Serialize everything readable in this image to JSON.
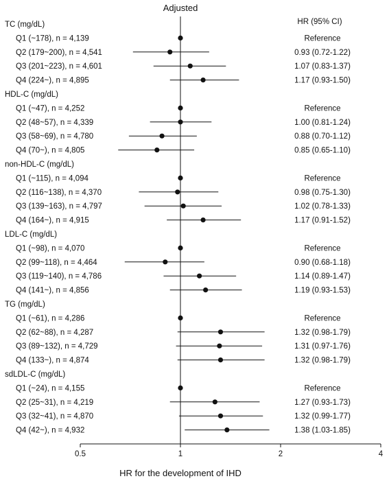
{
  "chart_data": {
    "type": "forest",
    "title": "Adjusted",
    "xlabel": "HR for the development of IHD",
    "hr_header": "HR (95% CI)",
    "x_scale": "log2",
    "xlim": [
      0.5,
      4
    ],
    "xticks": [
      {
        "value": 0.5,
        "label": "0.5"
      },
      {
        "value": 1,
        "label": "1"
      },
      {
        "value": 2,
        "label": "2"
      },
      {
        "value": 4,
        "label": "4"
      }
    ],
    "reference_line": 1,
    "groups": [
      {
        "name": "TC (mg/dL)",
        "rows": [
          {
            "label": "Q1 (~178), n = 4,139",
            "hr": 1.0,
            "lo": null,
            "hi": null,
            "text": "Reference"
          },
          {
            "label": "Q2 (179~200), n = 4,541",
            "hr": 0.93,
            "lo": 0.72,
            "hi": 1.22,
            "text": "0.93 (0.72-1.22)"
          },
          {
            "label": "Q3 (201~223), n = 4,601",
            "hr": 1.07,
            "lo": 0.83,
            "hi": 1.37,
            "text": "1.07 (0.83-1.37)"
          },
          {
            "label": "Q4 (224~), n = 4,895",
            "hr": 1.17,
            "lo": 0.93,
            "hi": 1.5,
            "text": "1.17 (0.93-1.50)"
          }
        ]
      },
      {
        "name": "HDL-C (mg/dL)",
        "rows": [
          {
            "label": "Q1 (~47), n = 4,252",
            "hr": 1.0,
            "lo": null,
            "hi": null,
            "text": "Reference"
          },
          {
            "label": "Q2 (48~57), n = 4,339",
            "hr": 1.0,
            "lo": 0.81,
            "hi": 1.24,
            "text": "1.00 (0.81-1.24)"
          },
          {
            "label": "Q3 (58~69), n = 4,780",
            "hr": 0.88,
            "lo": 0.7,
            "hi": 1.12,
            "text": "0.88 (0.70-1.12)"
          },
          {
            "label": "Q4 (70~), n = 4,805",
            "hr": 0.85,
            "lo": 0.65,
            "hi": 1.1,
            "text": "0.85 (0.65-1.10)"
          }
        ]
      },
      {
        "name": "non-HDL-C (mg/dL)",
        "rows": [
          {
            "label": "Q1 (~115), n = 4,094",
            "hr": 1.0,
            "lo": null,
            "hi": null,
            "text": "Reference"
          },
          {
            "label": "Q2 (116~138), n = 4,370",
            "hr": 0.98,
            "lo": 0.75,
            "hi": 1.3,
            "text": "0.98 (0.75-1.30)"
          },
          {
            "label": "Q3 (139~163), n = 4,797",
            "hr": 1.02,
            "lo": 0.78,
            "hi": 1.33,
            "text": "1.02 (0.78-1.33)"
          },
          {
            "label": "Q4 (164~), n = 4,915",
            "hr": 1.17,
            "lo": 0.91,
            "hi": 1.52,
            "text": "1.17 (0.91-1.52)"
          }
        ]
      },
      {
        "name": "LDL-C (mg/dL)",
        "rows": [
          {
            "label": "Q1 (~98), n = 4,070",
            "hr": 1.0,
            "lo": null,
            "hi": null,
            "text": "Reference"
          },
          {
            "label": "Q2 (99~118), n = 4,464",
            "hr": 0.9,
            "lo": 0.68,
            "hi": 1.18,
            "text": "0.90 (0.68-1.18)"
          },
          {
            "label": "Q3 (119~140), n = 4,786",
            "hr": 1.14,
            "lo": 0.89,
            "hi": 1.47,
            "text": "1.14 (0.89-1.47)"
          },
          {
            "label": "Q4 (141~), n = 4,856",
            "hr": 1.19,
            "lo": 0.93,
            "hi": 1.53,
            "text": "1.19 (0.93-1.53)"
          }
        ]
      },
      {
        "name": "TG (mg/dL)",
        "rows": [
          {
            "label": "Q1 (~61), n = 4,286",
            "hr": 1.0,
            "lo": null,
            "hi": null,
            "text": "Reference"
          },
          {
            "label": "Q2 (62~88), n = 4,287",
            "hr": 1.32,
            "lo": 0.98,
            "hi": 1.79,
            "text": "1.32 (0.98-1.79)"
          },
          {
            "label": "Q3 (89~132), n = 4,729",
            "hr": 1.31,
            "lo": 0.97,
            "hi": 1.76,
            "text": "1.31 (0.97-1.76)"
          },
          {
            "label": "Q4 (133~), n = 4,874",
            "hr": 1.32,
            "lo": 0.98,
            "hi": 1.79,
            "text": "1.32 (0.98-1.79)"
          }
        ]
      },
      {
        "name": "sdLDL-C (mg/dL)",
        "rows": [
          {
            "label": "Q1 (~24), n = 4,155",
            "hr": 1.0,
            "lo": null,
            "hi": null,
            "text": "Reference"
          },
          {
            "label": "Q2 (25~31), n = 4,219",
            "hr": 1.27,
            "lo": 0.93,
            "hi": 1.73,
            "text": "1.27 (0.93-1.73)"
          },
          {
            "label": "Q3 (32~41), n = 4,870",
            "hr": 1.32,
            "lo": 0.99,
            "hi": 1.77,
            "text": "1.32 (0.99-1.77)"
          },
          {
            "label": "Q4 (42~), n = 4,932",
            "hr": 1.38,
            "lo": 1.03,
            "hi": 1.85,
            "text": "1.38 (1.03-1.85)"
          }
        ]
      }
    ]
  }
}
